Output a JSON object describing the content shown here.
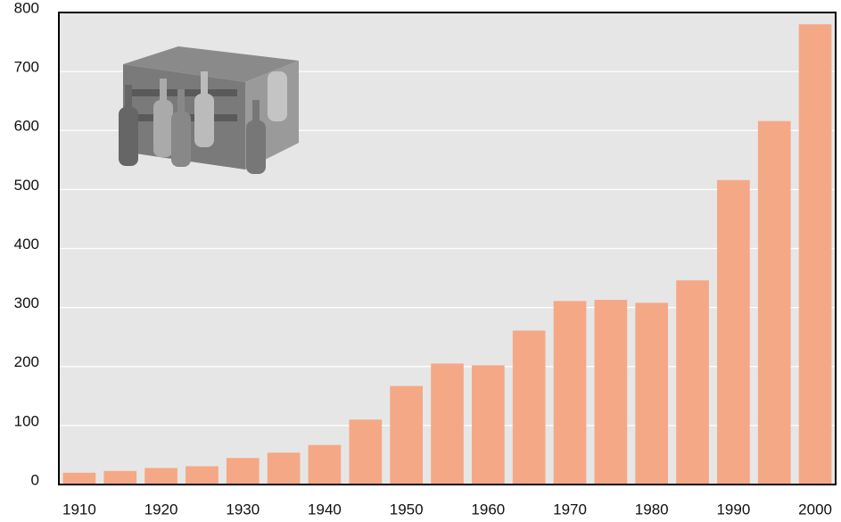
{
  "chart_data": {
    "type": "bar",
    "categories": [
      "1910",
      null,
      "1920",
      null,
      "1930",
      null,
      "1940",
      null,
      "1950",
      null,
      "1960",
      null,
      "1970",
      null,
      "1980",
      null,
      "1990",
      null,
      "2000"
    ],
    "values": [
      20,
      23,
      28,
      31,
      45,
      54,
      67,
      110,
      167,
      205,
      202,
      261,
      311,
      313,
      308,
      346,
      516,
      616,
      780
    ],
    "color": "#f5a886",
    "ylim": [
      0,
      800
    ],
    "yticks": [
      0,
      100,
      200,
      300,
      400,
      500,
      600,
      700,
      800
    ],
    "grid": true
  }
}
